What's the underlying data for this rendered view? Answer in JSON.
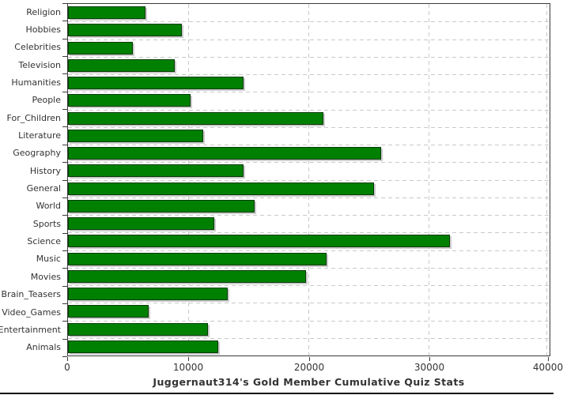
{
  "chart_data": {
    "type": "bar",
    "orientation": "horizontal",
    "title": "Juggernaut314's Gold Member Cumulative Quiz Stats",
    "categories": [
      "Religion",
      "Hobbies",
      "Celebrities",
      "Television",
      "Humanities",
      "People",
      "For_Children",
      "Literature",
      "Geography",
      "History",
      "General",
      "World",
      "Sports",
      "Science",
      "Music",
      "Movies",
      "Brain_Teasers",
      "Video_Games",
      "Entertainment",
      "Animals"
    ],
    "values": [
      6450,
      9450,
      5400,
      8850,
      14600,
      10200,
      21200,
      11250,
      26000,
      14600,
      25450,
      15500,
      12150,
      31700,
      21450,
      19800,
      13250,
      6700,
      11650,
      12500
    ],
    "xlim": [
      0,
      40000
    ],
    "x_ticks": [
      0,
      10000,
      20000,
      30000,
      40000
    ],
    "x_tick_labels": [
      "0",
      "10000",
      "20000",
      "30000",
      "40000"
    ],
    "xlabel": "",
    "ylabel": "",
    "grid": "dashed",
    "legend": "none",
    "colors": {
      "bar_fill": "#008000",
      "bar_outline": "#063a06",
      "bar_shadow": "#cccccc",
      "gridline": "#c9c9c9",
      "axis_frame": "#3a3a3a",
      "text": "#333333",
      "background": "#ffffff"
    }
  }
}
